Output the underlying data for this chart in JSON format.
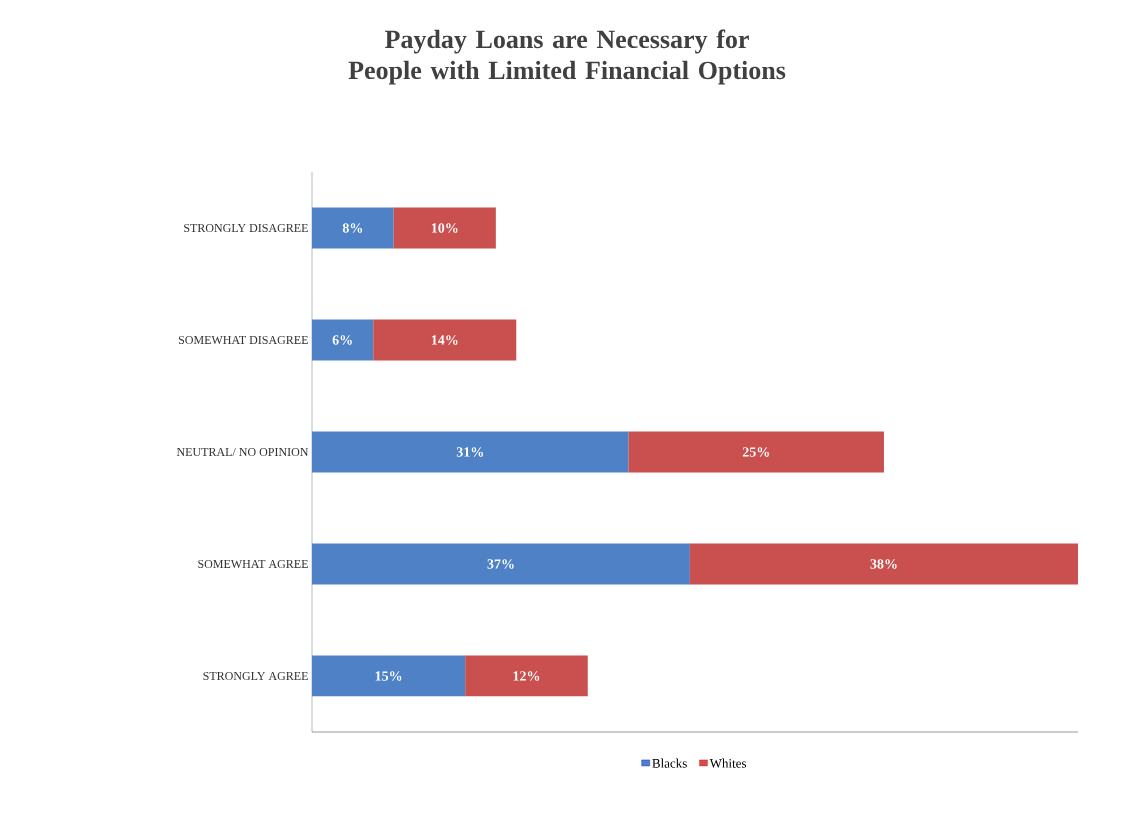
{
  "chart_data": {
    "type": "bar",
    "orientation": "horizontal",
    "stacked": true,
    "title": "Payday Loans are Necessary for People with Limited Financial Options",
    "categories": [
      "STRONGLY DISAGREE",
      "SOMEWHAT DISAGREE",
      "NEUTRAL/ NO OPINION",
      "SOMEWHAT AGREE",
      "STRONGLY AGREE"
    ],
    "series": [
      {
        "name": "Blacks",
        "color": "#4f81c7",
        "values": [
          8,
          6,
          31,
          37,
          15
        ],
        "value_labels": [
          "8%",
          "6%",
          "31%",
          "37%",
          "15%"
        ]
      },
      {
        "name": "Whites",
        "color": "#c9504f",
        "values": [
          10,
          14,
          25,
          38,
          12
        ],
        "value_labels": [
          "10%",
          "14%",
          "25%",
          "38%",
          "12%"
        ]
      }
    ],
    "legend": "bottom"
  }
}
